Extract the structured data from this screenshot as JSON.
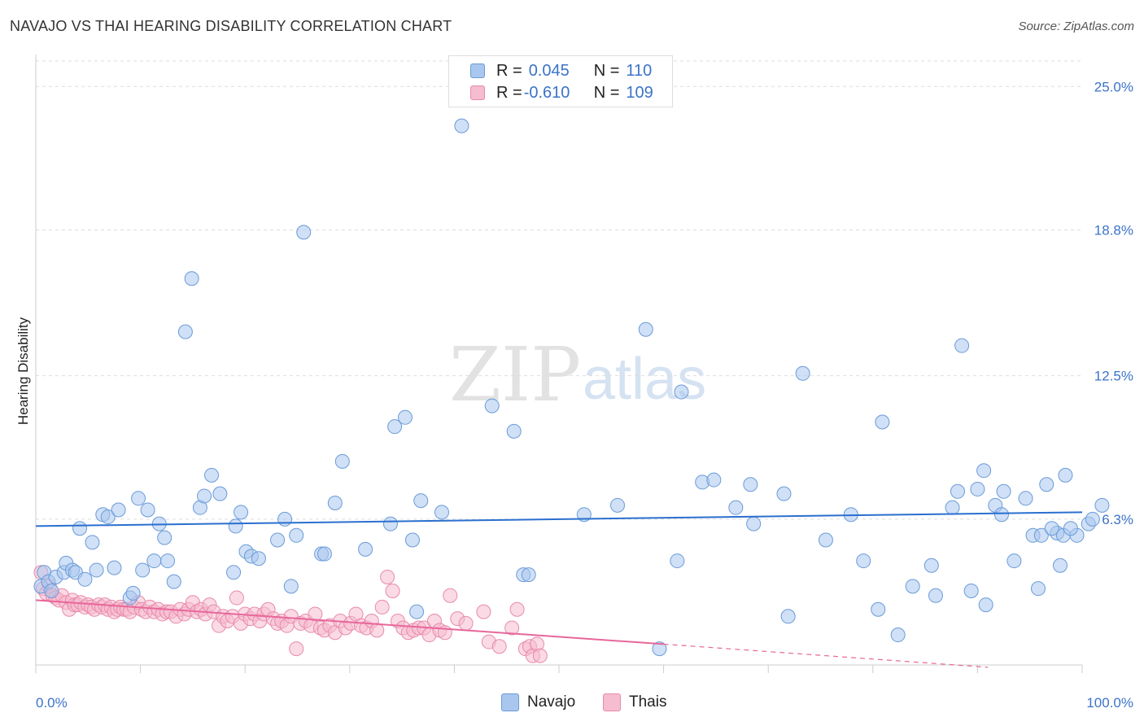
{
  "title": "NAVAJO VS THAI HEARING DISABILITY CORRELATION CHART",
  "source": "Source: ZipAtlas.com",
  "watermark": {
    "zip": "ZIP",
    "atlas": "atlas"
  },
  "legend": {
    "rows": [
      {
        "r_label": "R = ",
        "r_value": "0.045",
        "n_label": "N = ",
        "n_value": "110",
        "color": "#a9c7ee",
        "border": "#6a9bd8"
      },
      {
        "r_label": "R = ",
        "r_value": "-0.610",
        "n_label": "N = ",
        "n_value": "109",
        "color": "#f6bcd0",
        "border": "#e88aaa"
      }
    ]
  },
  "bottom_legend": [
    {
      "label": "Navajo",
      "color": "#a9c7ee",
      "border": "#6a9bd8"
    },
    {
      "label": "Thais",
      "color": "#f6bcd0",
      "border": "#e88aaa"
    }
  ],
  "chart_data": {
    "type": "scatter",
    "title": "NAVAJO VS THAI HEARING DISABILITY CORRELATION CHART",
    "xlabel": "",
    "ylabel": "Hearing Disability",
    "xlim": [
      0,
      100
    ],
    "ylim": [
      0,
      26.1
    ],
    "x_tick_labels": [
      "0.0%",
      "100.0%"
    ],
    "y_ticks": [
      6.3,
      12.5,
      18.8,
      25.0
    ],
    "y_tick_labels": [
      "6.3%",
      "12.5%",
      "18.8%",
      "25.0%"
    ],
    "grid": true,
    "legend_position": "top-center",
    "colors": {
      "navajo_fill": "#a9c7ee",
      "navajo_stroke": "#6a9bd8",
      "navajo_line": "#2a6fcf",
      "thai_fill": "#f6bcd0",
      "thai_stroke": "#e88aaa",
      "thai_line": "#e8679a",
      "tick_label": "#3b73c9"
    },
    "series": [
      {
        "name": "Navajo",
        "trend": {
          "x": [
            0,
            100
          ],
          "y": [
            6.0,
            6.6
          ]
        },
        "points": [
          [
            0.5,
            3.4
          ],
          [
            0.8,
            4.0
          ],
          [
            1.2,
            3.6
          ],
          [
            1.5,
            3.2
          ],
          [
            1.9,
            3.8
          ],
          [
            2.7,
            4.0
          ],
          [
            2.9,
            4.4
          ],
          [
            3.5,
            4.1
          ],
          [
            3.8,
            4.0
          ],
          [
            4.2,
            5.9
          ],
          [
            4.7,
            3.7
          ],
          [
            5.4,
            5.3
          ],
          [
            5.8,
            4.1
          ],
          [
            6.4,
            6.5
          ],
          [
            6.9,
            6.4
          ],
          [
            7.5,
            4.2
          ],
          [
            7.9,
            6.7
          ],
          [
            9.0,
            2.9
          ],
          [
            9.3,
            3.1
          ],
          [
            9.8,
            7.2
          ],
          [
            10.2,
            4.1
          ],
          [
            10.7,
            6.7
          ],
          [
            11.3,
            4.5
          ],
          [
            11.8,
            6.1
          ],
          [
            12.3,
            5.5
          ],
          [
            12.6,
            4.5
          ],
          [
            13.2,
            3.6
          ],
          [
            14.3,
            14.4
          ],
          [
            14.9,
            16.7
          ],
          [
            15.7,
            6.8
          ],
          [
            16.1,
            7.3
          ],
          [
            16.8,
            8.2
          ],
          [
            17.6,
            7.4
          ],
          [
            18.9,
            4.0
          ],
          [
            19.1,
            6.0
          ],
          [
            19.6,
            6.6
          ],
          [
            20.1,
            4.9
          ],
          [
            20.6,
            4.7
          ],
          [
            21.3,
            4.6
          ],
          [
            23.1,
            5.4
          ],
          [
            23.8,
            6.3
          ],
          [
            24.4,
            3.4
          ],
          [
            24.9,
            5.6
          ],
          [
            25.6,
            18.7
          ],
          [
            27.3,
            4.8
          ],
          [
            27.6,
            4.8
          ],
          [
            28.6,
            7.0
          ],
          [
            29.3,
            8.8
          ],
          [
            31.5,
            5.0
          ],
          [
            33.9,
            6.1
          ],
          [
            34.3,
            10.3
          ],
          [
            35.3,
            10.7
          ],
          [
            36.0,
            5.4
          ],
          [
            36.4,
            2.3
          ],
          [
            36.8,
            7.1
          ],
          [
            38.8,
            6.6
          ],
          [
            40.7,
            23.3
          ],
          [
            43.6,
            11.2
          ],
          [
            45.7,
            10.1
          ],
          [
            46.6,
            3.9
          ],
          [
            47.1,
            3.9
          ],
          [
            52.4,
            6.5
          ],
          [
            55.6,
            6.9
          ],
          [
            58.3,
            14.5
          ],
          [
            59.6,
            0.7
          ],
          [
            61.3,
            4.5
          ],
          [
            61.7,
            11.8
          ],
          [
            63.7,
            7.9
          ],
          [
            64.8,
            8.0
          ],
          [
            66.9,
            6.8
          ],
          [
            68.3,
            7.8
          ],
          [
            68.6,
            6.1
          ],
          [
            71.5,
            7.4
          ],
          [
            71.9,
            2.1
          ],
          [
            73.3,
            12.6
          ],
          [
            75.5,
            5.4
          ],
          [
            77.9,
            6.5
          ],
          [
            79.1,
            4.5
          ],
          [
            80.5,
            2.4
          ],
          [
            80.9,
            10.5
          ],
          [
            82.4,
            1.3
          ],
          [
            83.8,
            3.4
          ],
          [
            85.6,
            4.3
          ],
          [
            86.0,
            3.0
          ],
          [
            87.6,
            6.8
          ],
          [
            88.1,
            7.5
          ],
          [
            88.5,
            13.8
          ],
          [
            89.4,
            3.2
          ],
          [
            90.0,
            7.6
          ],
          [
            90.6,
            8.4
          ],
          [
            90.8,
            2.6
          ],
          [
            91.7,
            6.9
          ],
          [
            92.3,
            6.5
          ],
          [
            92.5,
            7.5
          ],
          [
            93.5,
            4.5
          ],
          [
            94.6,
            7.2
          ],
          [
            95.3,
            5.6
          ],
          [
            95.8,
            3.3
          ],
          [
            96.1,
            5.6
          ],
          [
            96.6,
            7.8
          ],
          [
            97.9,
            4.3
          ],
          [
            97.6,
            5.7
          ],
          [
            98.2,
            5.6
          ],
          [
            98.4,
            8.2
          ],
          [
            99.5,
            5.6
          ],
          [
            100.6,
            6.1
          ],
          [
            101.0,
            6.3
          ],
          [
            101.9,
            6.9
          ],
          [
            97.1,
            5.9
          ],
          [
            98.9,
            5.9
          ]
        ]
      },
      {
        "name": "Thais",
        "trend": {
          "x": [
            0,
            60
          ],
          "y": [
            2.8,
            0.9
          ]
        },
        "trend_extension": {
          "x": [
            60,
            91
          ],
          "y": [
            0.9,
            -0.1
          ]
        },
        "points": [
          [
            0.5,
            4.0
          ],
          [
            0.7,
            3.3
          ],
          [
            1.0,
            3.1
          ],
          [
            1.3,
            3.4
          ],
          [
            1.6,
            3.0
          ],
          [
            1.9,
            2.9
          ],
          [
            2.2,
            2.8
          ],
          [
            2.5,
            3.0
          ],
          [
            2.9,
            2.7
          ],
          [
            3.2,
            2.4
          ],
          [
            3.5,
            2.8
          ],
          [
            3.7,
            2.6
          ],
          [
            4.0,
            2.6
          ],
          [
            4.3,
            2.7
          ],
          [
            4.7,
            2.5
          ],
          [
            5.0,
            2.6
          ],
          [
            5.3,
            2.5
          ],
          [
            5.6,
            2.4
          ],
          [
            6.0,
            2.6
          ],
          [
            6.3,
            2.5
          ],
          [
            6.6,
            2.6
          ],
          [
            6.9,
            2.4
          ],
          [
            7.2,
            2.5
          ],
          [
            7.5,
            2.3
          ],
          [
            7.8,
            2.4
          ],
          [
            8.1,
            2.5
          ],
          [
            8.4,
            2.4
          ],
          [
            8.7,
            2.4
          ],
          [
            9.0,
            2.3
          ],
          [
            9.4,
            2.5
          ],
          [
            9.8,
            2.7
          ],
          [
            10.1,
            2.4
          ],
          [
            10.5,
            2.3
          ],
          [
            10.9,
            2.5
          ],
          [
            11.3,
            2.3
          ],
          [
            11.7,
            2.4
          ],
          [
            12.1,
            2.2
          ],
          [
            12.5,
            2.3
          ],
          [
            12.9,
            2.3
          ],
          [
            13.4,
            2.1
          ],
          [
            13.8,
            2.4
          ],
          [
            14.2,
            2.2
          ],
          [
            14.6,
            2.4
          ],
          [
            15.0,
            2.7
          ],
          [
            15.4,
            2.3
          ],
          [
            15.8,
            2.4
          ],
          [
            16.2,
            2.2
          ],
          [
            16.6,
            2.6
          ],
          [
            17.0,
            2.3
          ],
          [
            17.5,
            1.7
          ],
          [
            17.9,
            2.1
          ],
          [
            18.3,
            1.9
          ],
          [
            18.8,
            2.1
          ],
          [
            19.2,
            2.9
          ],
          [
            19.6,
            1.8
          ],
          [
            20.0,
            2.2
          ],
          [
            20.5,
            2.0
          ],
          [
            20.9,
            2.2
          ],
          [
            21.4,
            1.9
          ],
          [
            21.8,
            2.2
          ],
          [
            22.2,
            2.4
          ],
          [
            22.7,
            2.0
          ],
          [
            23.1,
            1.8
          ],
          [
            23.5,
            1.9
          ],
          [
            24.0,
            1.7
          ],
          [
            24.4,
            2.1
          ],
          [
            24.9,
            0.7
          ],
          [
            25.3,
            1.8
          ],
          [
            25.8,
            1.9
          ],
          [
            26.3,
            1.7
          ],
          [
            26.7,
            2.2
          ],
          [
            27.2,
            1.6
          ],
          [
            27.6,
            1.5
          ],
          [
            28.1,
            1.7
          ],
          [
            28.6,
            1.4
          ],
          [
            29.1,
            1.9
          ],
          [
            29.6,
            1.6
          ],
          [
            30.1,
            1.8
          ],
          [
            30.6,
            2.2
          ],
          [
            31.1,
            1.7
          ],
          [
            31.6,
            1.6
          ],
          [
            32.1,
            1.9
          ],
          [
            32.6,
            1.5
          ],
          [
            33.1,
            2.5
          ],
          [
            33.6,
            3.8
          ],
          [
            34.1,
            3.2
          ],
          [
            34.6,
            1.9
          ],
          [
            35.1,
            1.6
          ],
          [
            35.6,
            1.4
          ],
          [
            36.1,
            1.5
          ],
          [
            36.6,
            1.6
          ],
          [
            37.1,
            1.6
          ],
          [
            37.6,
            1.3
          ],
          [
            38.1,
            1.9
          ],
          [
            38.6,
            1.5
          ],
          [
            39.1,
            1.4
          ],
          [
            39.6,
            3.0
          ],
          [
            40.3,
            2.0
          ],
          [
            41.1,
            1.8
          ],
          [
            42.8,
            2.3
          ],
          [
            43.3,
            1.0
          ],
          [
            44.3,
            0.8
          ],
          [
            45.5,
            1.6
          ],
          [
            46.0,
            2.4
          ],
          [
            46.8,
            0.7
          ],
          [
            47.2,
            0.8
          ],
          [
            47.5,
            0.4
          ],
          [
            47.9,
            0.9
          ],
          [
            48.2,
            0.4
          ]
        ]
      }
    ]
  }
}
